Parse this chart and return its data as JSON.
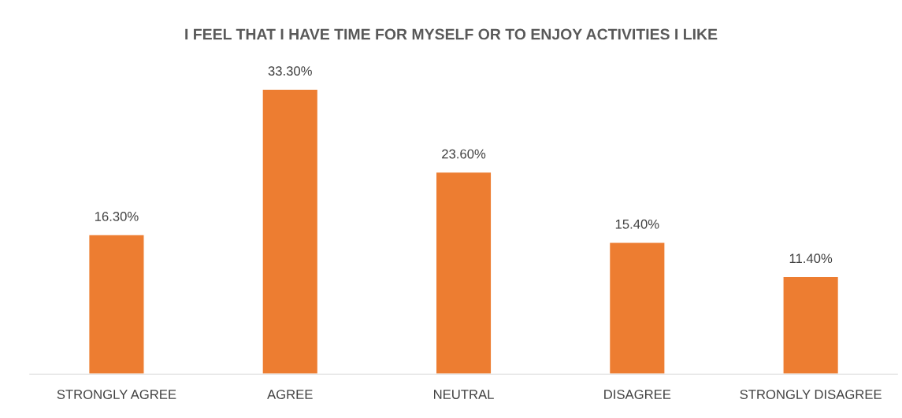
{
  "chart_data": {
    "type": "bar",
    "title": "I FEEL THAT I HAVE TIME FOR MYSELF OR TO ENJOY ACTIVITIES I LIKE",
    "categories": [
      "STRONGLY AGREE",
      "AGREE",
      "NEUTRAL",
      "DISAGREE",
      "STRONGLY DISAGREE"
    ],
    "values": [
      16.3,
      33.3,
      23.6,
      15.4,
      11.4
    ],
    "value_labels": [
      "16.30%",
      "33.30%",
      "23.60%",
      "15.40%",
      "11.40%"
    ],
    "color": "#ed7d31"
  }
}
